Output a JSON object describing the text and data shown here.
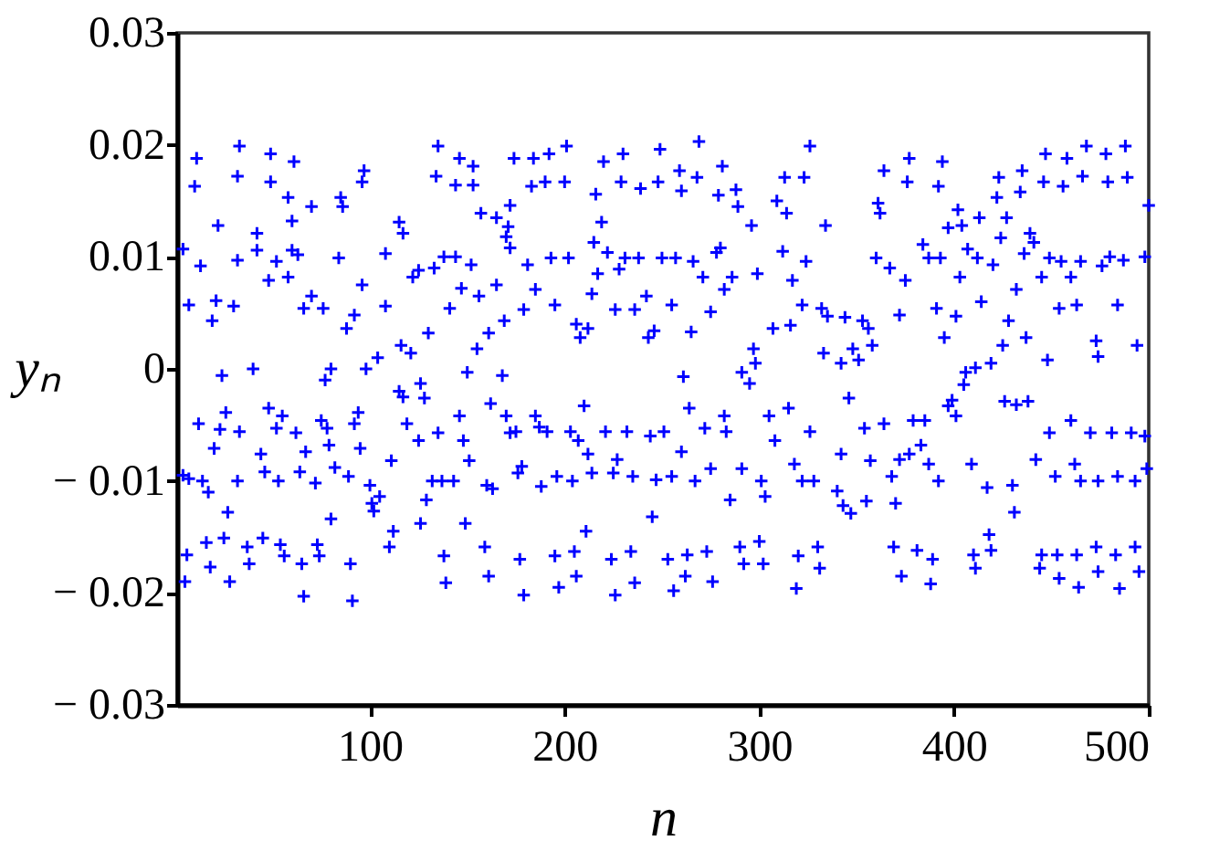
{
  "chart_data": {
    "type": "scatter",
    "xlabel": "n",
    "ylabel": "yₙ",
    "color": "#0000ff",
    "marker": "cross",
    "xlim": [
      1,
      500
    ],
    "xticks": [
      100,
      200,
      300,
      400,
      500
    ],
    "ylim": [
      -0.03,
      0.03
    ],
    "yticks": [
      {
        "value": -0.03,
        "label": "− 0.03"
      },
      {
        "value": -0.02,
        "label": "− 0.02"
      },
      {
        "value": -0.01,
        "label": "− 0.01"
      },
      0,
      0.01,
      0.02,
      0.03
    ],
    "x": [
      11,
      33,
      10,
      32,
      49,
      61,
      49,
      58,
      70,
      85,
      86,
      97,
      96,
      22,
      42,
      60,
      4,
      13,
      32,
      42,
      52,
      60,
      63,
      48,
      58,
      84,
      108,
      117,
      115,
      96,
      7,
      21,
      30,
      19,
      70,
      66,
      76,
      92,
      88,
      108,
      122,
      125,
      133,
      138,
      144,
      152,
      135,
      146,
      153,
      134,
      144,
      153,
      157,
      165,
      172,
      171,
      170,
      172,
      165,
      147,
      156,
      141,
      130,
      155,
      161,
      169,
      116,
      121,
      104,
      98,
      80,
      77,
      24,
      40,
      126,
      150,
      168,
      174,
      184,
      192,
      201,
      220,
      230,
      249,
      269,
      281,
      326,
      183,
      190,
      200,
      216,
      229,
      239,
      248,
      259,
      260,
      268,
      279,
      288,
      289,
      313,
      323,
      309,
      314,
      219,
      296,
      334,
      215,
      181,
      193,
      202,
      222,
      231,
      238,
      250,
      257,
      266,
      278,
      280,
      312,
      324,
      185,
      217,
      228,
      271,
      286,
      282,
      299,
      317,
      214,
      242,
      179,
      195,
      226,
      236,
      255,
      275,
      322,
      206,
      212,
      208,
      243,
      246,
      265,
      307,
      316,
      332,
      335,
      297,
      298,
      291,
      295,
      333,
      261,
      364,
      377,
      394,
      376,
      392,
      361,
      362,
      402,
      423,
      435,
      434,
      422,
      447,
      458,
      468,
      478,
      488,
      446,
      456,
      466,
      479,
      489,
      500,
      397,
      404,
      413,
      427,
      424,
      439,
      441,
      384,
      360,
      387,
      393,
      407,
      412,
      420,
      436,
      449,
      455,
      465,
      476,
      480,
      487,
      498,
      367,
      375,
      403,
      445,
      460,
      432,
      414,
      391,
      372,
      401,
      428,
      454,
      463,
      484,
      344,
      353,
      356,
      395,
      425,
      437,
      473,
      474,
      494,
      342,
      348,
      351,
      358,
      406,
      411,
      405,
      419,
      448,
      115,
      117,
      128,
      12,
      26,
      23,
      33,
      48,
      55,
      52,
      62,
      75,
      78,
      94,
      92,
      119,
      125,
      135,
      146,
      148,
      162,
      170,
      172,
      20,
      44,
      67,
      79,
      95,
      111,
      151,
      4,
      7,
      14,
      17,
      32,
      46,
      53,
      64,
      72,
      82,
      89,
      100,
      105,
      101,
      102,
      129,
      132,
      137,
      143,
      160,
      163,
      27,
      80,
      112,
      126,
      149,
      110,
      6,
      16,
      25,
      37,
      45,
      54,
      56,
      73,
      74,
      65,
      18,
      38,
      90,
      5,
      28,
      66,
      91,
      138,
      139,
      159,
      161,
      185,
      187,
      175,
      191,
      203,
      210,
      207,
      221,
      232,
      244,
      251,
      264,
      272,
      282,
      283,
      305,
      315,
      308,
      326,
      260,
      212,
      227,
      178,
      176,
      188,
      196,
      204,
      214,
      225,
      235,
      247,
      255,
      267,
      275,
      291,
      301,
      318,
      322,
      328,
      285,
      303,
      245,
      211,
      177,
      195,
      205,
      224,
      234,
      253,
      263,
      273,
      290,
      300,
      292,
      302,
      320,
      330,
      331,
      206,
      197,
      236,
      262,
      276,
      179,
      226,
      256,
      319,
      346,
      399,
      397,
      401,
      426,
      432,
      438,
      354,
      364,
      379,
      385,
      342,
      357,
      372,
      377,
      383,
      387,
      392,
      368,
      409,
      417,
      430,
      431,
      370,
      340,
      343,
      347,
      355,
      442,
      449,
      460,
      470,
      481,
      491,
      498,
      462,
      452,
      465,
      474,
      484,
      493,
      499,
      369,
      373,
      381,
      389,
      388,
      410,
      411,
      418,
      419,
      445,
      444,
      453,
      463,
      473,
      483,
      493,
      474,
      495,
      454,
      464,
      485
    ],
    "values": [
      0.0188,
      0.0199,
      0.0163,
      0.0172,
      0.0192,
      0.0185,
      0.0167,
      0.0153,
      0.0145,
      0.0153,
      0.0145,
      0.0177,
      0.0167,
      0.0128,
      0.0121,
      0.0132,
      0.0107,
      0.0092,
      0.0097,
      0.0106,
      0.0096,
      0.0106,
      0.0102,
      0.0079,
      0.0082,
      0.0099,
      0.0103,
      0.0121,
      0.0131,
      0.0075,
      0.0057,
      0.0061,
      0.0056,
      0.0043,
      0.0065,
      0.0054,
      0.0054,
      0.0048,
      0.0036,
      0.0056,
      0.0082,
      0.0088,
      0.009,
      0.01,
      0.01,
      0.0093,
      0.0199,
      0.0188,
      0.0181,
      0.0172,
      0.0164,
      0.0164,
      0.0139,
      0.0135,
      0.0146,
      0.0127,
      0.0118,
      0.0108,
      0.0075,
      0.0072,
      0.0065,
      0.0054,
      0.0032,
      0.0018,
      0.0032,
      0.0043,
      0.0021,
      0.0014,
      0.001,
      0,
      0,
      -0.001,
      -0.0006,
      0,
      -0.0013,
      -0.0003,
      -0.0006,
      0.0188,
      0.0188,
      0.0192,
      0.0199,
      0.0185,
      0.0192,
      0.0196,
      0.0203,
      0.0181,
      0.0199,
      0.0163,
      0.0167,
      0.0167,
      0.0156,
      0.0167,
      0.0161,
      0.0167,
      0.0177,
      0.0159,
      0.0171,
      0.0155,
      0.016,
      0.0145,
      0.0171,
      0.0171,
      0.015,
      0.0139,
      0.0131,
      0.0128,
      0.0128,
      0.0113,
      0.0093,
      0.0099,
      0.0099,
      0.0104,
      0.0099,
      0.0099,
      0.0099,
      0.0099,
      0.0096,
      0.0104,
      0.0108,
      0.0105,
      0.0096,
      0.0071,
      0.0085,
      0.0089,
      0.0082,
      0.0082,
      0.0071,
      0.0085,
      0.0079,
      0.0067,
      0.0065,
      0.0053,
      0.0057,
      0.0053,
      0.0053,
      0.0057,
      0.0051,
      0.0057,
      0.004,
      0.0036,
      0.0028,
      0.0028,
      0.0034,
      0.0033,
      0.0036,
      0.0039,
      0.0054,
      0.0047,
      0.0018,
      0.0005,
      -0.0003,
      -0.0013,
      0.0014,
      -0.0007,
      0.0177,
      0.0188,
      0.0185,
      0.0167,
      0.0163,
      0.0148,
      0.0139,
      0.0142,
      0.0171,
      0.0177,
      0.0158,
      0.0153,
      0.0192,
      0.0188,
      0.0199,
      0.0192,
      0.0199,
      0.0167,
      0.0163,
      0.0172,
      0.0167,
      0.0171,
      0.0146,
      0.0126,
      0.0128,
      0.0135,
      0.0135,
      0.0117,
      0.0121,
      0.0113,
      0.0111,
      0.0099,
      0.0099,
      0.0099,
      0.0107,
      0.0099,
      0.0093,
      0.0103,
      0.0099,
      0.0096,
      0.0096,
      0.0092,
      0.01,
      0.0097,
      0.01,
      0.009,
      0.0079,
      0.0082,
      0.0082,
      0.0082,
      0.0071,
      0.006,
      0.0054,
      0.0048,
      0.0047,
      0.0043,
      0.0054,
      0.0057,
      0.0057,
      0.0046,
      0.0043,
      0.0036,
      0.0028,
      0.0021,
      0.0028,
      0.0025,
      0.0011,
      0.0021,
      0.0005,
      0.0018,
      0.0008,
      0.0021,
      -0.0003,
      0.0001,
      -0.0014,
      0.0005,
      0.0008,
      -0.002,
      -0.0025,
      -0.0026,
      -0.0049,
      -0.0039,
      -0.0054,
      -0.0056,
      -0.0035,
      -0.0042,
      -0.0053,
      -0.0057,
      -0.0046,
      -0.0053,
      -0.0039,
      -0.0049,
      -0.0049,
      -0.0064,
      -0.0057,
      -0.0042,
      -0.0064,
      -0.0031,
      -0.0042,
      -0.0057,
      -0.0071,
      -0.0076,
      -0.0074,
      -0.0068,
      -0.0071,
      -0.0082,
      -0.0082,
      -0.0095,
      -0.0098,
      -0.01,
      -0.011,
      -0.01,
      -0.0092,
      -0.01,
      -0.0092,
      -0.0102,
      -0.0088,
      -0.0096,
      -0.0104,
      -0.0114,
      -0.012,
      -0.0127,
      -0.0117,
      -0.01,
      -0.01,
      -0.01,
      -0.0104,
      -0.0107,
      -0.0128,
      -0.0134,
      -0.0145,
      -0.0138,
      -0.0138,
      -0.0159,
      -0.0166,
      -0.0155,
      -0.0151,
      -0.0159,
      -0.0151,
      -0.0157,
      -0.0167,
      -0.0157,
      -0.0167,
      -0.0174,
      -0.0177,
      -0.0174,
      -0.0174,
      -0.019,
      -0.019,
      -0.0203,
      -0.0207,
      -0.0167,
      -0.0191,
      -0.0159,
      -0.0185,
      -0.0042,
      -0.0052,
      -0.0056,
      -0.0056,
      -0.0056,
      -0.0033,
      -0.0064,
      -0.0056,
      -0.0056,
      -0.006,
      -0.0056,
      -0.0035,
      -0.0053,
      -0.0042,
      -0.0056,
      -0.0042,
      -0.0035,
      -0.0064,
      -0.0056,
      -0.0074,
      -0.0076,
      -0.0081,
      -0.0087,
      -0.0093,
      -0.0105,
      -0.0096,
      -0.01,
      -0.0093,
      -0.0093,
      -0.0096,
      -0.0099,
      -0.0096,
      -0.01,
      -0.0089,
      -0.0089,
      -0.01,
      -0.0085,
      -0.01,
      -0.01,
      -0.0117,
      -0.0114,
      -0.0132,
      -0.0145,
      -0.017,
      -0.0167,
      -0.0163,
      -0.017,
      -0.0163,
      -0.017,
      -0.0166,
      -0.0163,
      -0.0159,
      -0.0154,
      -0.0174,
      -0.0174,
      -0.0167,
      -0.0159,
      -0.0178,
      -0.0185,
      -0.0195,
      -0.0191,
      -0.0185,
      -0.019,
      -0.0202,
      -0.0202,
      -0.0198,
      -0.0196,
      -0.0026,
      -0.0028,
      -0.0033,
      -0.0042,
      -0.0029,
      -0.0032,
      -0.0029,
      -0.0053,
      -0.0049,
      -0.0046,
      -0.0046,
      -0.0076,
      -0.0082,
      -0.0081,
      -0.0076,
      -0.0068,
      -0.0085,
      -0.01,
      -0.0096,
      -0.0085,
      -0.0106,
      -0.0104,
      -0.0128,
      -0.012,
      -0.0109,
      -0.0122,
      -0.0129,
      -0.0118,
      -0.0081,
      -0.0057,
      -0.0046,
      -0.0057,
      -0.0057,
      -0.0057,
      -0.006,
      -0.0085,
      -0.0096,
      -0.01,
      -0.01,
      -0.0096,
      -0.01,
      -0.0089,
      -0.0159,
      -0.0185,
      -0.0162,
      -0.017,
      -0.0192,
      -0.0166,
      -0.0178,
      -0.0148,
      -0.0162,
      -0.0166,
      -0.0178,
      -0.0166,
      -0.0166,
      -0.0159,
      -0.0166,
      -0.0159,
      -0.0181,
      -0.0181,
      -0.0187,
      -0.0195,
      -0.0196
    ]
  }
}
